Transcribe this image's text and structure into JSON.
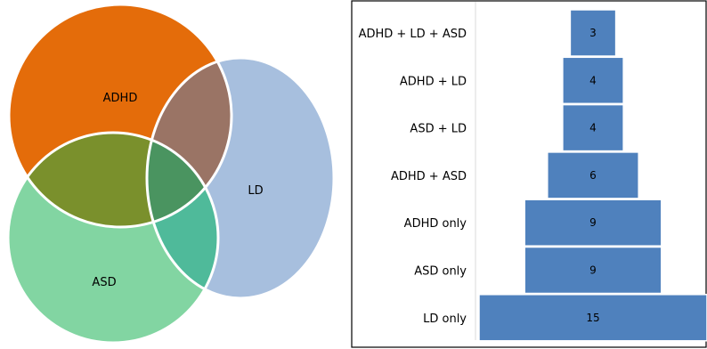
{
  "venn": {
    "sets": [
      {
        "name": "ADHD",
        "color": "#E46C0A"
      },
      {
        "name": "LD",
        "color": "#A7BFDE"
      },
      {
        "name": "ASD",
        "color": "#82D5A2"
      }
    ],
    "overlap_colors": {
      "ADHD+LD": "#9A7465",
      "ADHD+ASD": "#7A902C",
      "LD+ASD": "#4FBA9A",
      "ADHD+LD+ASD": "#4A9460"
    }
  },
  "chart_data": {
    "type": "bar",
    "orientation": "horizontal",
    "layout": "centered-pyramid",
    "categories": [
      "ADHD + LD + ASD",
      "ADHD + LD",
      "ASD + LD",
      "ADHD + ASD",
      "ADHD only",
      "ASD only",
      "LD only"
    ],
    "values": [
      3,
      4,
      4,
      6,
      9,
      9,
      15
    ],
    "bar_color": "#4F81BD",
    "xlim": [
      0,
      15
    ],
    "grid": false,
    "legend": "none"
  }
}
